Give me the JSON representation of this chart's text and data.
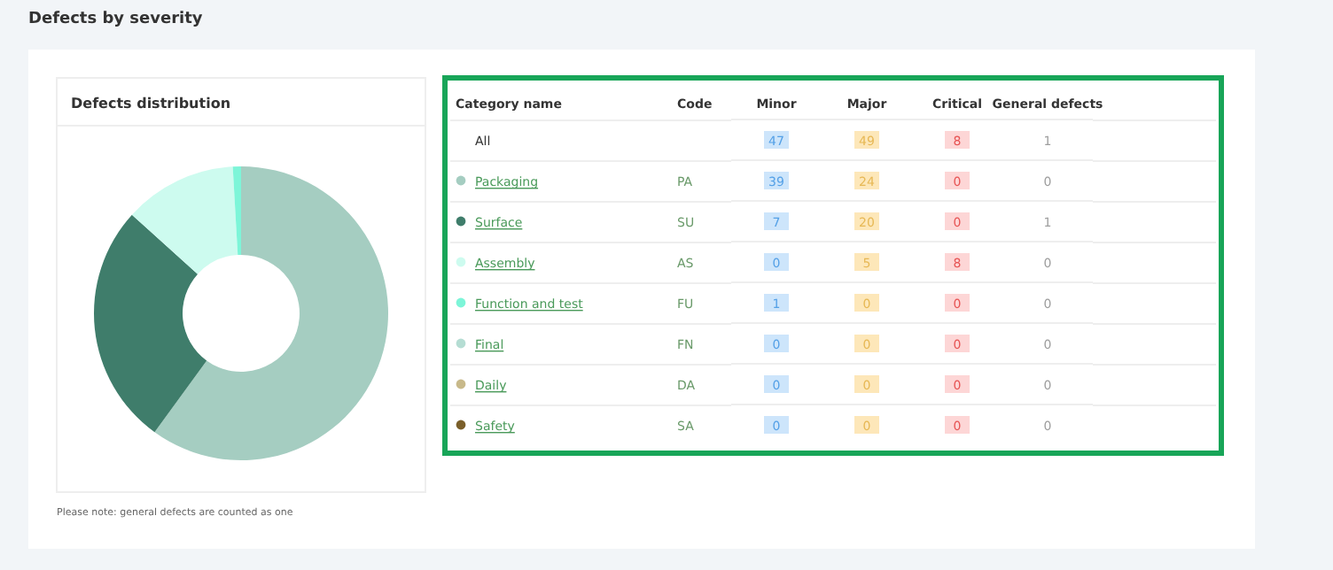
{
  "chart_data": [
    {
      "type": "donut",
      "title": "Defects by severity",
      "subtitle": "Defects distribution",
      "categories": [
        null,
        null,
        null,
        null,
        null,
        null,
        null
      ],
      "values": [
        60,
        26.7,
        12.4,
        0.9,
        0,
        0,
        0
      ],
      "colors": [
        "#a5cdc1",
        "#3f7d6b",
        "#cdfbef",
        "#7df5d8",
        "#b5ddd3",
        "#c8b98a",
        "#7a5f2a"
      ],
      "annotations": [
        "Please note: general defects are counted as one"
      ]
    },
    {
      "type": "heatmap",
      "ylabel": "Code",
      "y2label": "Category name",
      "categories": [
        "Minor",
        "Major",
        "Critical",
        "General defects"
      ],
      "y_categories": [
        null,
        "PA",
        "SU",
        "AS",
        "FU",
        "FN",
        "DA",
        "SA"
      ],
      "y2_categories": [
        "All",
        "Packaging",
        "Surface",
        "Assembly",
        "Function and test",
        "Final",
        "Daily",
        "Safety"
      ],
      "colors": [
        "#cde5fb",
        "#fde7b9",
        "#fdd6d6",
        "#ffffff"
      ],
      "data_labels": true,
      "cells": [
        [
          47,
          49,
          8,
          1
        ],
        [
          39,
          24,
          0,
          0
        ],
        [
          7,
          20,
          0,
          1
        ],
        [
          0,
          5,
          8,
          0
        ],
        [
          1,
          0,
          0,
          0
        ],
        [
          0,
          0,
          0,
          0
        ],
        [
          0,
          0,
          0,
          0
        ],
        [
          0,
          0,
          0,
          0
        ]
      ]
    }
  ]
}
